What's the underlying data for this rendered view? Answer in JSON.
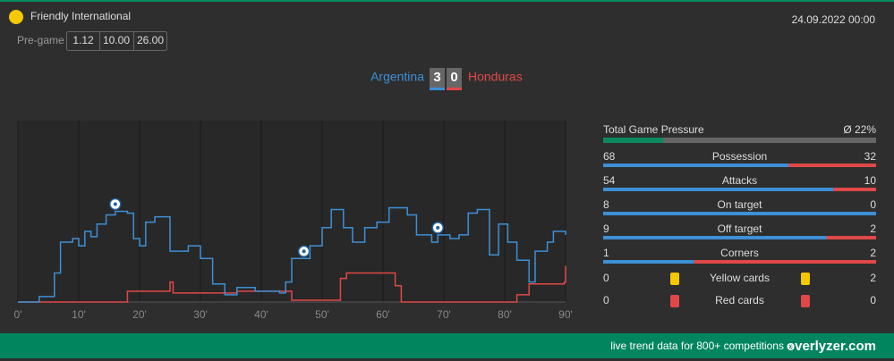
{
  "header": {
    "competition": "Friendly International",
    "date": "24.09.2022 00:00",
    "pregame_label": "Pre-game",
    "odds": [
      "1.12",
      "10.00",
      "26.00"
    ]
  },
  "match": {
    "home": "Argentina",
    "home_score": 3,
    "away_score": 0,
    "away": "Honduras"
  },
  "chart_data": {
    "type": "line",
    "xlim": [
      0,
      90
    ],
    "ylim": [
      0,
      100
    ],
    "xticks": [
      {
        "value": 0,
        "label": "0'"
      },
      {
        "value": 10,
        "label": "10'"
      },
      {
        "value": 20,
        "label": "20'"
      },
      {
        "value": 30,
        "label": "30'"
      },
      {
        "value": 40,
        "label": "40'"
      },
      {
        "value": 50,
        "label": "50'"
      },
      {
        "value": 60,
        "label": "60'"
      },
      {
        "value": 70,
        "label": "70'"
      },
      {
        "value": 80,
        "label": "80'"
      },
      {
        "value": 90,
        "label": "90'"
      }
    ],
    "series": [
      {
        "color": "#3d8fd6",
        "x": [
          0,
          3.5,
          6,
          7,
          9,
          10,
          11,
          12,
          13,
          14.5,
          16,
          18,
          19,
          20,
          21,
          22.5,
          25,
          28,
          30,
          32,
          34,
          36,
          39,
          43,
          44,
          45,
          48,
          50,
          51.5,
          53.5,
          55,
          57,
          59,
          61,
          64,
          65.5,
          68,
          69,
          71,
          72.5,
          74,
          75.5,
          77.5,
          79,
          80.5,
          82,
          84,
          85,
          87,
          88,
          90
        ],
        "values": [
          0,
          3,
          16,
          33,
          35,
          31,
          39,
          36,
          43,
          48,
          50,
          49,
          35,
          31,
          44,
          47,
          28,
          31,
          24,
          10,
          4,
          8,
          6,
          5,
          11,
          24,
          31,
          41,
          51,
          41,
          33,
          41,
          44,
          52,
          48,
          37,
          33,
          37,
          35,
          37,
          49,
          51,
          26,
          43,
          33,
          23,
          11,
          28,
          33,
          39,
          37
        ]
      },
      {
        "color": "#e04848",
        "x": [
          0,
          18,
          25,
          25.5,
          36,
          42,
          45,
          53,
          54,
          62,
          63,
          81,
          82,
          84,
          89.8,
          90
        ],
        "values": [
          0,
          6,
          11,
          5,
          6,
          6,
          1,
          13,
          16,
          9,
          0,
          0,
          4,
          10,
          11,
          20
        ]
      }
    ],
    "goals": [
      16,
      47,
      69
    ]
  },
  "pressure": {
    "label": "Total Game Pressure",
    "value": 22,
    "value_label": "Ø 22%"
  },
  "stats": [
    {
      "label": "Possession",
      "home": 68,
      "away": 32
    },
    {
      "label": "Attacks",
      "home": 54,
      "away": 10
    },
    {
      "label": "On target",
      "home": 8,
      "away": 0
    },
    {
      "label": "Off target",
      "home": 9,
      "away": 2
    },
    {
      "label": "Corners",
      "home": 1,
      "away": 2
    }
  ],
  "cards": [
    {
      "label": "Yellow cards",
      "home": 0,
      "away": 2,
      "color": "#f5c800"
    },
    {
      "label": "Red cards",
      "home": 0,
      "away": 0,
      "color": "#e04848"
    }
  ],
  "footer": {
    "text": "live trend data for 800+ competitions »",
    "brand": "overlyzer.com"
  }
}
